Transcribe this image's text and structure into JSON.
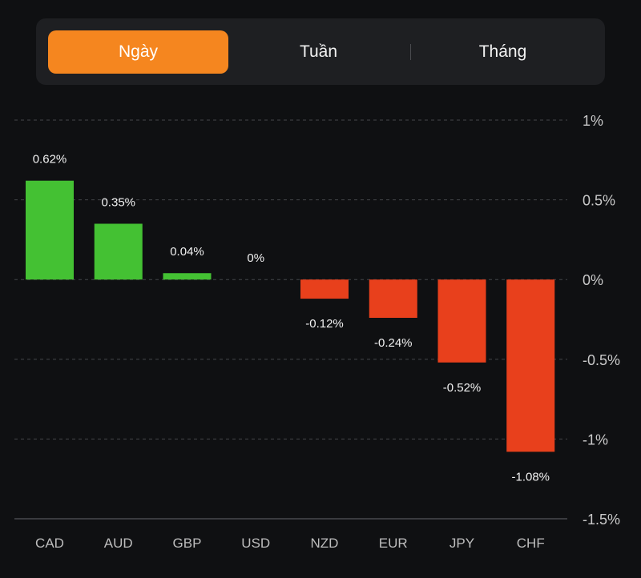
{
  "tabs": [
    {
      "label": "Ngày",
      "active": true
    },
    {
      "label": "Tuần",
      "active": false
    },
    {
      "label": "Tháng",
      "active": false
    }
  ],
  "colors": {
    "accent": "#f5861f",
    "positive": "#44c133",
    "negative": "#e8401c",
    "background": "#0f1012",
    "panel": "#1e1f22"
  },
  "chart_data": {
    "type": "bar",
    "categories": [
      "CAD",
      "AUD",
      "GBP",
      "USD",
      "NZD",
      "EUR",
      "JPY",
      "CHF"
    ],
    "values": [
      0.62,
      0.35,
      0.04,
      0,
      -0.12,
      -0.24,
      -0.52,
      -1.08
    ],
    "value_labels": [
      "0.62%",
      "0.35%",
      "0.04%",
      "0%",
      "-0.12%",
      "-0.24%",
      "-0.52%",
      "-1.08%"
    ],
    "ylim": [
      -1.5,
      1
    ],
    "y_ticks": [
      1,
      0.5,
      0,
      -0.5,
      -1,
      -1.5
    ],
    "y_tick_labels": [
      "1%",
      "0.5%",
      "0%",
      "-0.5%",
      "-1%",
      "-1.5%"
    ],
    "y_axis_position": "right",
    "grid": "dashed",
    "title": "",
    "xlabel": "",
    "ylabel": ""
  }
}
